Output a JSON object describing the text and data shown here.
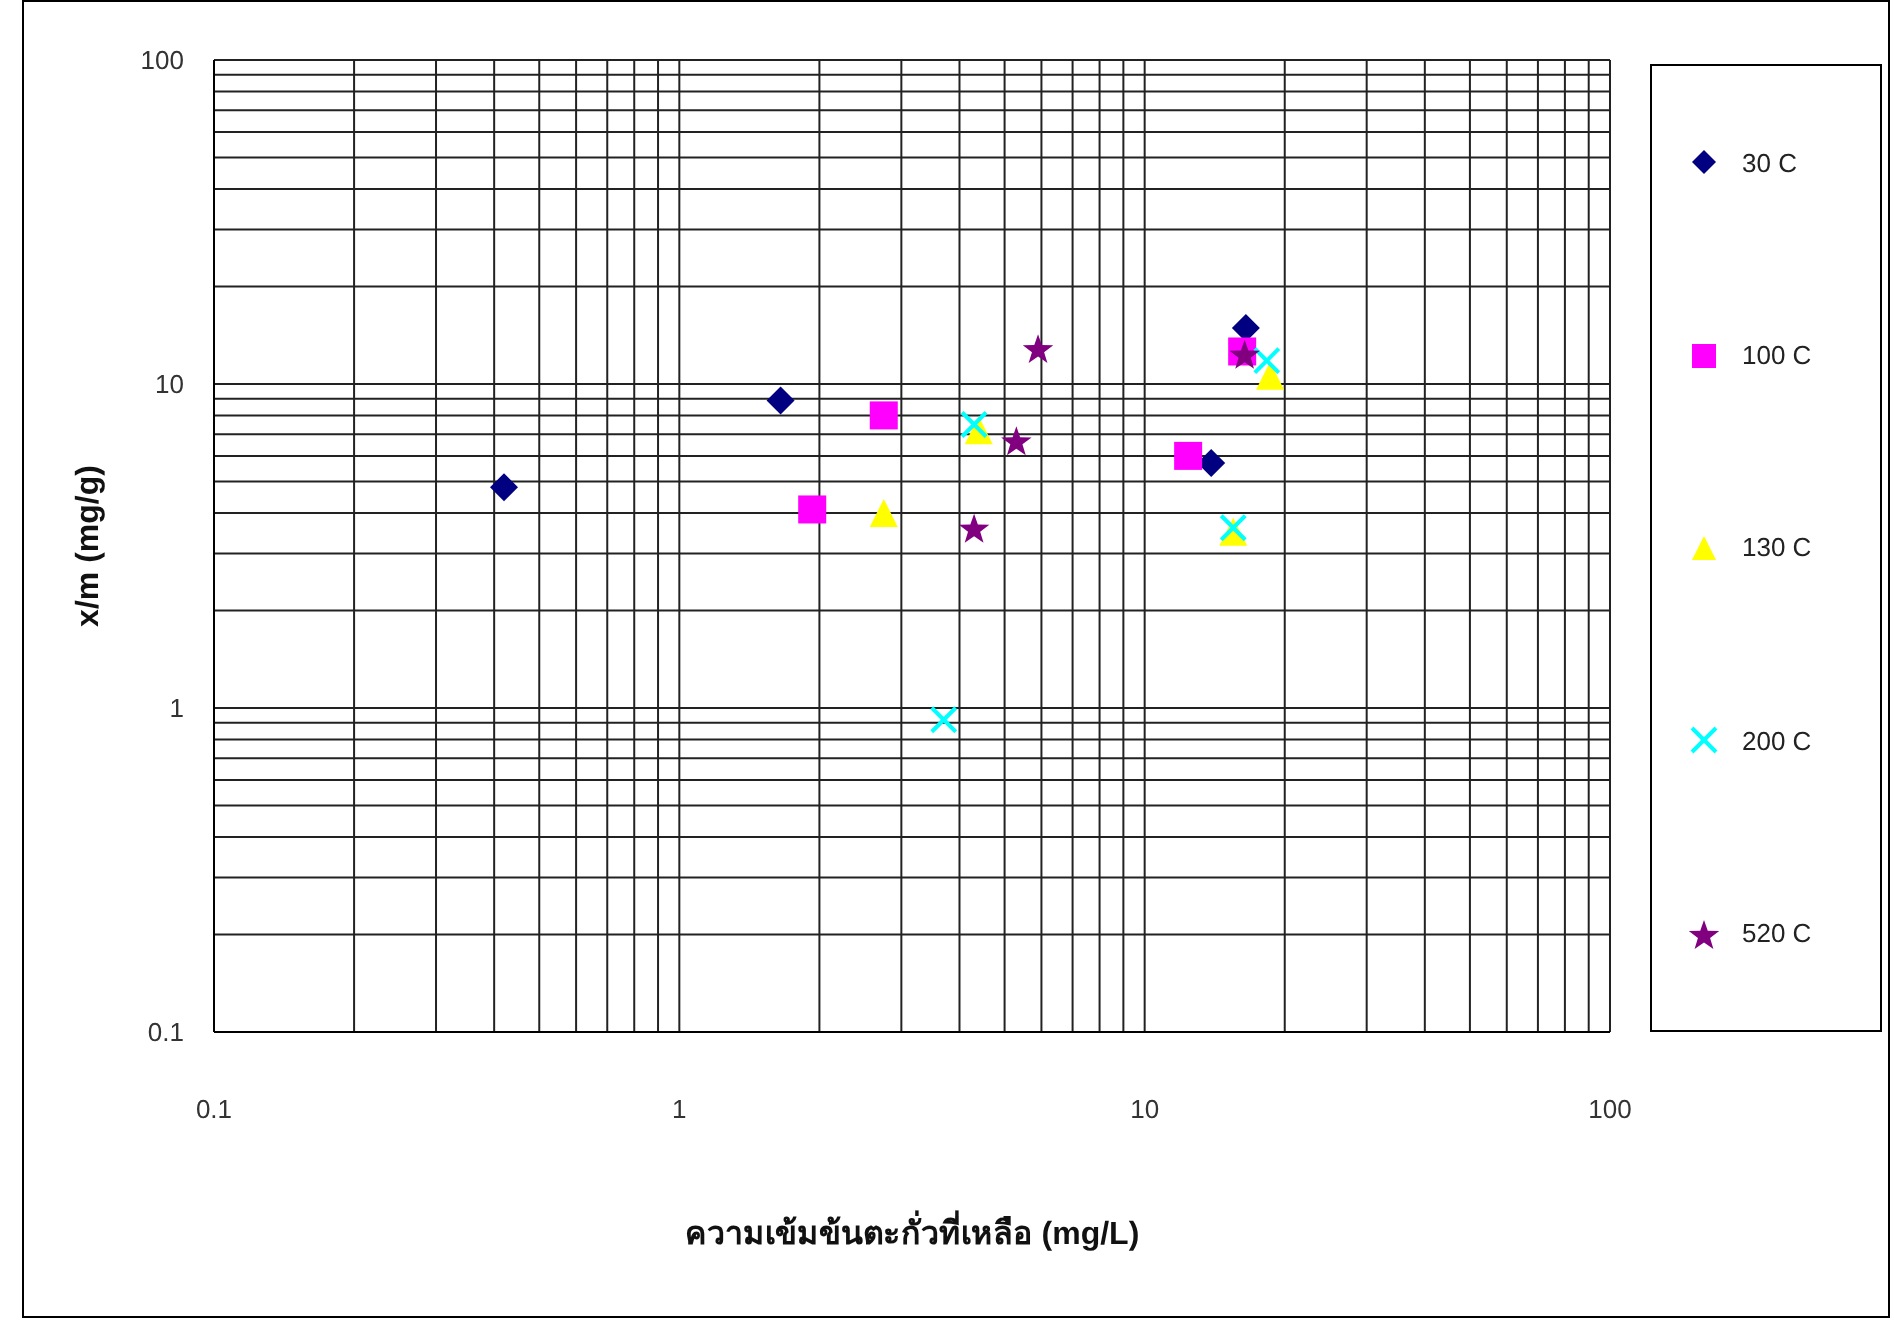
{
  "chart_data": {
    "type": "scatter",
    "xlabel": "ความเข้มข้นตะกั่วที่เหลือ (mg/L)",
    "ylabel": "x/m (mg/g)",
    "log": "xy",
    "xlim": [
      0.1,
      100
    ],
    "ylim": [
      0.1,
      100
    ],
    "xticks": [
      0.1,
      {
        "value": 0.2,
        "label": null
      },
      {
        "value": 0.3,
        "label": null
      },
      {
        "value": 0.4,
        "label": null
      },
      {
        "value": 0.5,
        "label": null
      },
      {
        "value": 0.6,
        "label": null
      },
      {
        "value": 0.7,
        "label": null
      },
      {
        "value": 0.8,
        "label": null
      },
      {
        "value": 0.9,
        "label": null
      },
      1,
      {
        "value": 2,
        "label": null
      },
      {
        "value": 3,
        "label": null
      },
      {
        "value": 4,
        "label": null
      },
      {
        "value": 5,
        "label": null
      },
      {
        "value": 6,
        "label": null
      },
      {
        "value": 7,
        "label": null
      },
      {
        "value": 8,
        "label": null
      },
      {
        "value": 9,
        "label": null
      },
      10,
      {
        "value": 20,
        "label": null
      },
      {
        "value": 30,
        "label": null
      },
      {
        "value": 40,
        "label": null
      },
      {
        "value": 50,
        "label": null
      },
      {
        "value": 60,
        "label": null
      },
      {
        "value": 70,
        "label": null
      },
      {
        "value": 80,
        "label": null
      },
      {
        "value": 90,
        "label": null
      },
      100
    ],
    "yticks": [
      0.1,
      {
        "value": 0.2,
        "label": null
      },
      {
        "value": 0.3,
        "label": null
      },
      {
        "value": 0.4,
        "label": null
      },
      {
        "value": 0.5,
        "label": null
      },
      {
        "value": 0.6,
        "label": null
      },
      {
        "value": 0.7,
        "label": null
      },
      {
        "value": 0.8,
        "label": null
      },
      {
        "value": 0.9,
        "label": null
      },
      1,
      {
        "value": 2,
        "label": null
      },
      {
        "value": 3,
        "label": null
      },
      {
        "value": 4,
        "label": null
      },
      {
        "value": 5,
        "label": null
      },
      {
        "value": 6,
        "label": null
      },
      {
        "value": 7,
        "label": null
      },
      {
        "value": 8,
        "label": null
      },
      {
        "value": 9,
        "label": null
      },
      10,
      {
        "value": 20,
        "label": null
      },
      {
        "value": 30,
        "label": null
      },
      {
        "value": 40,
        "label": null
      },
      {
        "value": 50,
        "label": null
      },
      {
        "value": 60,
        "label": null
      },
      {
        "value": 70,
        "label": null
      },
      {
        "value": 80,
        "label": null
      },
      {
        "value": 90,
        "label": null
      },
      100
    ],
    "grid": true,
    "legend": "right",
    "series": [
      {
        "name": "30 C",
        "color": "#000080",
        "marker": "diamond",
        "x": [
          0.42,
          1.65,
          13.9,
          16.5
        ],
        "values": [
          4.8,
          8.9,
          5.7,
          14.9
        ]
      },
      {
        "name": "100 C",
        "color": "#ff00ff",
        "marker": "square",
        "x": [
          1.93,
          2.75,
          12.4,
          16.2
        ],
        "values": [
          4.1,
          8.0,
          6.0,
          12.6
        ]
      },
      {
        "name": "130 C",
        "color": "#ffff00",
        "marker": "triangle",
        "x": [
          2.75,
          4.4,
          15.5,
          18.6
        ],
        "values": [
          4.0,
          7.2,
          3.5,
          10.6
        ]
      },
      {
        "name": "200 C",
        "color": "#00ffff",
        "marker": "cross",
        "x": [
          3.7,
          4.3,
          15.5,
          18.3
        ],
        "values": [
          0.92,
          7.5,
          3.6,
          11.8
        ]
      },
      {
        "name": "520 C",
        "color": "#800080",
        "marker": "star",
        "x": [
          4.3,
          5.3,
          5.9,
          16.4
        ],
        "values": [
          3.6,
          6.7,
          12.9,
          12.4
        ]
      }
    ]
  }
}
